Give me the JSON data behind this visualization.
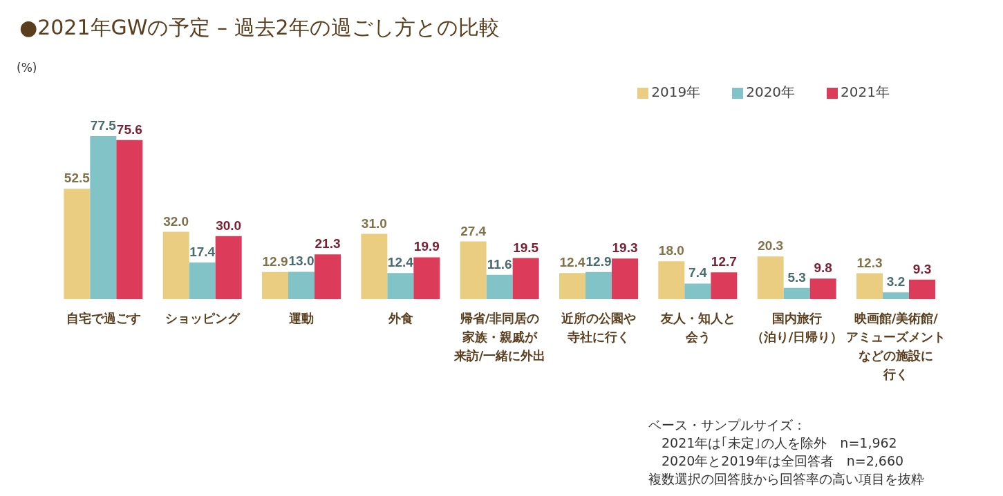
{
  "chart_data": {
    "type": "bar",
    "title": "●2021年GWの予定 – 過去2年の過ごし方との比較",
    "categories": [
      "自宅で過ごす",
      "ショッピング",
      "運動",
      "外食",
      "帰省/非同居の家族・親戚が来訪/一緒に外出",
      "近所の公園や寺社に行く",
      "友人・知人と会う",
      "国内旅行（泊り/日帰り）",
      "映画館/美術館/アミューズメントなどの施設に行く"
    ],
    "series": [
      {
        "name": "2019年",
        "color": "#ebcd82",
        "values": [
          52.5,
          32.0,
          12.9,
          31.0,
          27.4,
          12.4,
          18.0,
          20.3,
          12.3
        ],
        "value_labels": [
          "52.5",
          "32.0",
          "12.9",
          "31.0",
          "27.4",
          "12.4",
          "18.0",
          "20.3",
          "12.3"
        ]
      },
      {
        "name": "2020年",
        "color": "#82c3c8",
        "values": [
          77.5,
          17.4,
          13.0,
          12.4,
          11.6,
          12.9,
          7.4,
          5.3,
          3.2
        ],
        "value_labels": [
          "77.5",
          "17.4",
          "13.0",
          "12.4",
          "11.6",
          "12.9",
          "7.4",
          "5.3",
          "3.2"
        ]
      },
      {
        "name": "2021年",
        "color": "#dc3c5a",
        "values": [
          75.6,
          30.0,
          21.3,
          19.9,
          19.5,
          19.3,
          12.7,
          9.8,
          9.3
        ],
        "value_labels": [
          "75.6",
          "30.0",
          "21.3",
          "19.9",
          "19.5",
          "19.3",
          "12.7",
          "9.8",
          "9.3"
        ]
      }
    ],
    "data_labels": true,
    "grid": false,
    "legend": "top right",
    "annotations": [
      "(%)",
      "ベース・サンプルサイズ：",
      "　2021年は｢未定｣の人を除外　n=1,962",
      "　2020年と2019年は全回答者　n=2,660",
      "複数選択の回答肢から回答率の高い項目を抜粋"
    ]
  }
}
